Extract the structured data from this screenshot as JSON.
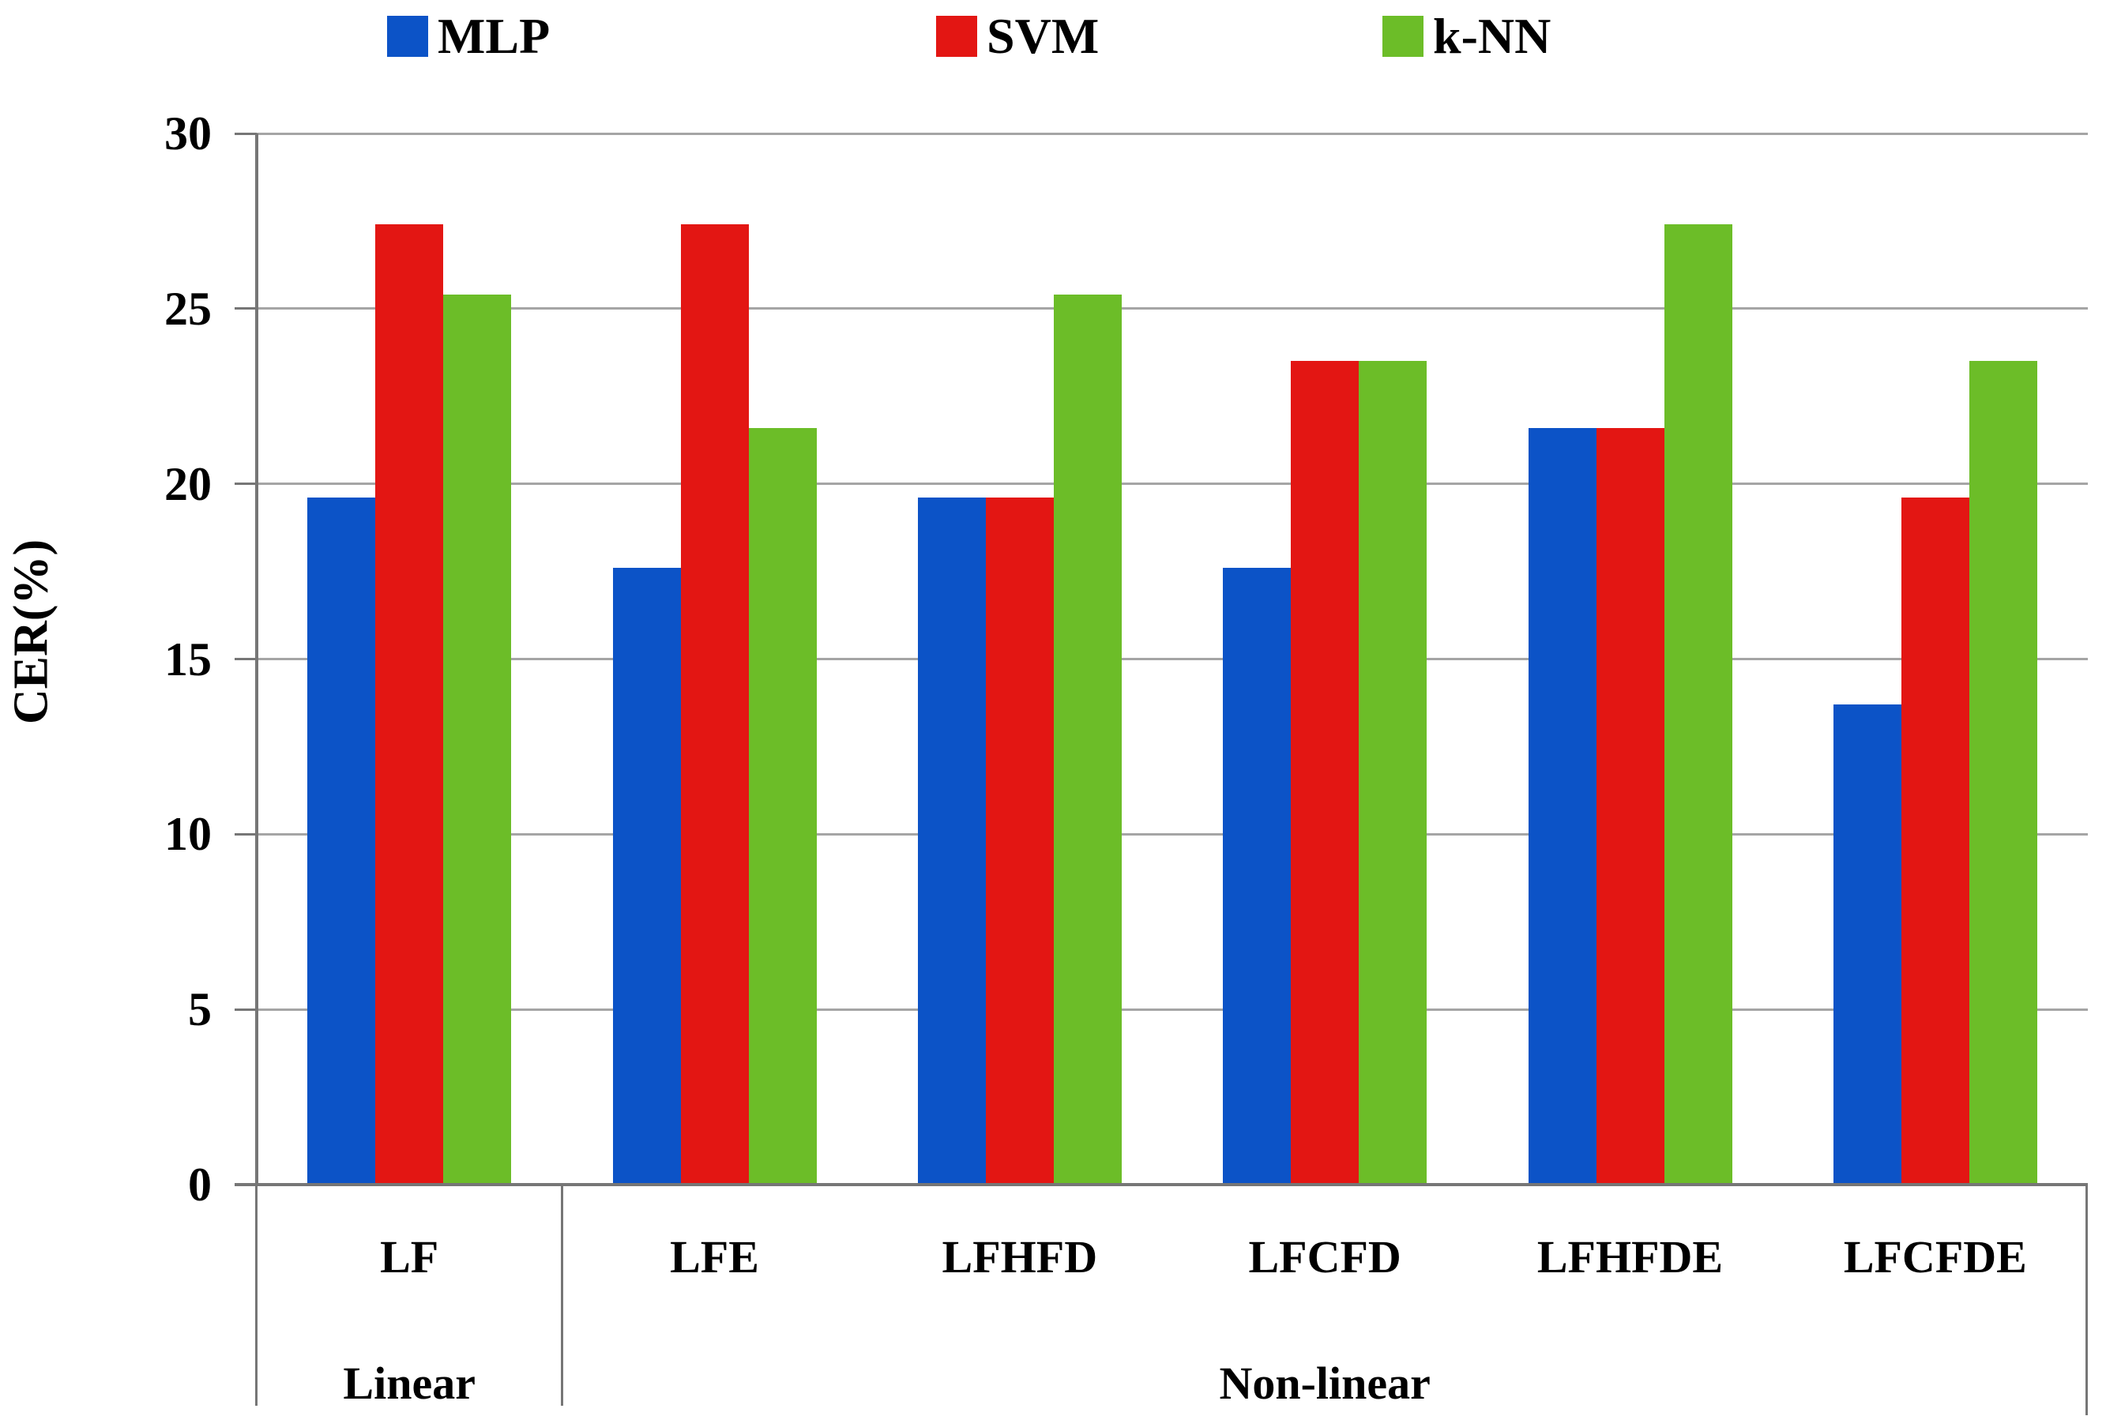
{
  "chart_data": {
    "type": "bar",
    "title": "",
    "ylabel": "CER(%)",
    "xlabel": "",
    "ylim": [
      0,
      30
    ],
    "yticks": [
      0,
      5,
      10,
      15,
      20,
      25,
      30
    ],
    "grid": true,
    "legend_position": "top-center",
    "categories": [
      "LF",
      "LFE",
      "LFHFD",
      "LFCFD",
      "LFHFDE",
      "LFCFDE"
    ],
    "category_groups": [
      {
        "label": "Linear",
        "first_category_index": 0,
        "last_category_index": 0
      },
      {
        "label": "Non-linear",
        "first_category_index": 1,
        "last_category_index": 5
      }
    ],
    "series": [
      {
        "name": "MLP",
        "color": "#0C53C7",
        "values": [
          19.6,
          17.6,
          19.6,
          17.6,
          21.6,
          13.7
        ]
      },
      {
        "name": "SVM",
        "color": "#E31613",
        "values": [
          27.4,
          27.4,
          19.6,
          23.5,
          21.6,
          19.6
        ]
      },
      {
        "name": "k-NN",
        "color": "#6CBD28",
        "values": [
          25.4,
          21.6,
          25.4,
          23.5,
          27.4,
          23.5
        ]
      }
    ],
    "grid_color": "#A5A5A5",
    "axis_color": "#767676",
    "text_color": "#000000"
  }
}
